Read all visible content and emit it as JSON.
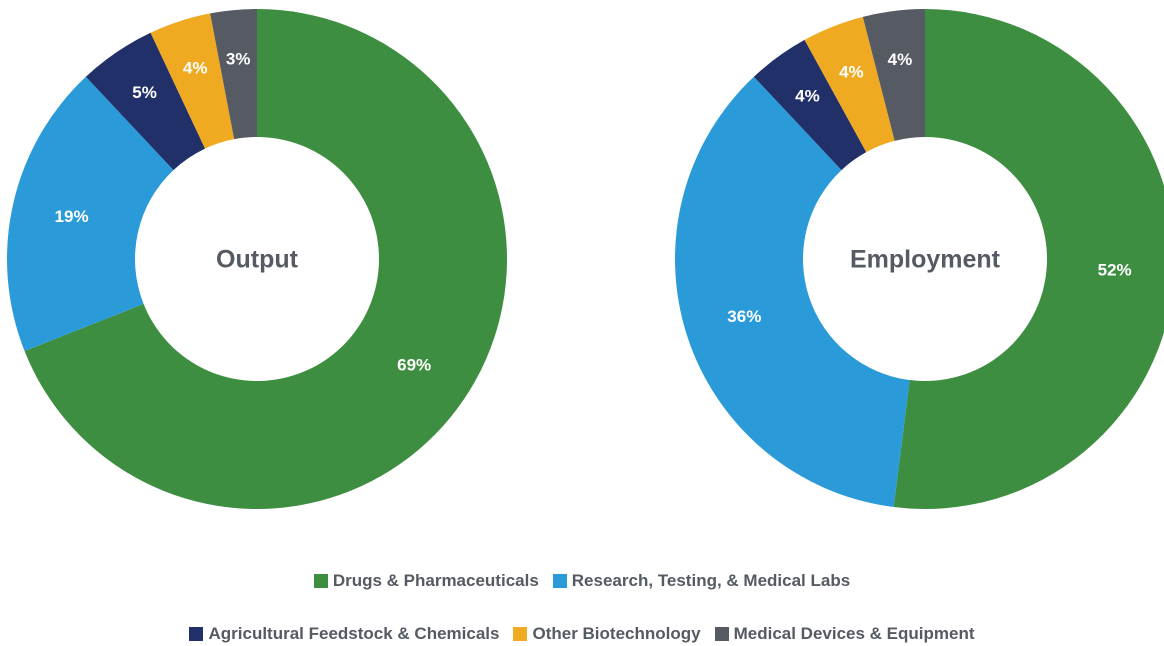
{
  "chart_data": [
    {
      "type": "donut",
      "title": "Output",
      "categories": [
        "Drugs & Pharmaceuticals",
        "Research, Testing, & Medical Labs",
        "Agricultural Feedstock & Chemicals",
        "Other Biotechnology",
        "Medical Devices & Equipment"
      ],
      "values": [
        69,
        19,
        5,
        4,
        3
      ],
      "value_labels": [
        "69%",
        "19%",
        "5%",
        "4%",
        "3%"
      ],
      "colors": [
        "#3e8e41",
        "#2a9bd8",
        "#22306a",
        "#f0aa22",
        "#555a63"
      ]
    },
    {
      "type": "donut",
      "title": "Employment",
      "categories": [
        "Drugs & Pharmaceuticals",
        "Research, Testing, & Medical Labs",
        "Agricultural Feedstock & Chemicals",
        "Other Biotechnology",
        "Medical Devices & Equipment"
      ],
      "values": [
        52,
        36,
        4,
        4,
        4
      ],
      "value_labels": [
        "52%",
        "36%",
        "4%",
        "4%",
        "4%"
      ],
      "colors": [
        "#3e8e41",
        "#2a9bd8",
        "#22306a",
        "#f0aa22",
        "#555a63"
      ]
    }
  ]
}
